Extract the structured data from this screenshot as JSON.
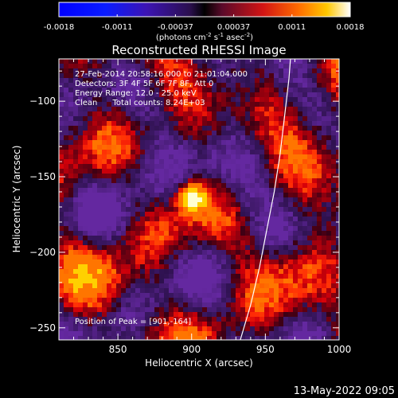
{
  "chart_data": {
    "type": "heatmap",
    "title": "Reconstructed RHESSI Image",
    "xlabel": "Heliocentric X (arcsec)",
    "ylabel": "Heliocentric Y (arcsec)",
    "xlim": [
      810,
      1000
    ],
    "ylim": [
      -258,
      -72
    ],
    "xticks": [
      850,
      900,
      950,
      1000
    ],
    "yticks": [
      -100,
      -150,
      -200,
      -250
    ],
    "colorbar": {
      "min": -0.0018,
      "max": 0.0018,
      "ticks": [
        "-0.0018",
        "-0.0011",
        "-0.00037",
        "0.00037",
        "0.0011",
        "0.0018"
      ],
      "label_main": "(photons cm",
      "label_sup1": "-2",
      "label_mid": " s",
      "label_sup2": "-1",
      "label_end": " asec",
      "label_sup3": "-2",
      "label_close": ")"
    },
    "annotations": [
      "27-Feb-2014 20:58:16.000 to 21:01:04.000",
      "Detectors: 3F 4F 5F 6F 7F 8F, Att 0",
      "Energy Range: 12.0 - 25.0 keV",
      "Clean      Total counts: 8.24E+03"
    ],
    "peak": {
      "x": 901,
      "y": -164,
      "label": "Position of Peak = [901,-164]"
    },
    "limb": [
      [
        933,
        -258
      ],
      [
        940,
        -235
      ],
      [
        946,
        -210
      ],
      [
        951,
        -185
      ],
      [
        956,
        -160
      ],
      [
        960,
        -135
      ],
      [
        963,
        -110
      ],
      [
        966,
        -85
      ],
      [
        967,
        -72
      ]
    ],
    "colors": {
      "negative": "#5a2a8c",
      "positive": "#ff4000",
      "peak": "#ffffe0"
    }
  },
  "footer": {
    "timestamp": "13-May-2022 09:05"
  }
}
